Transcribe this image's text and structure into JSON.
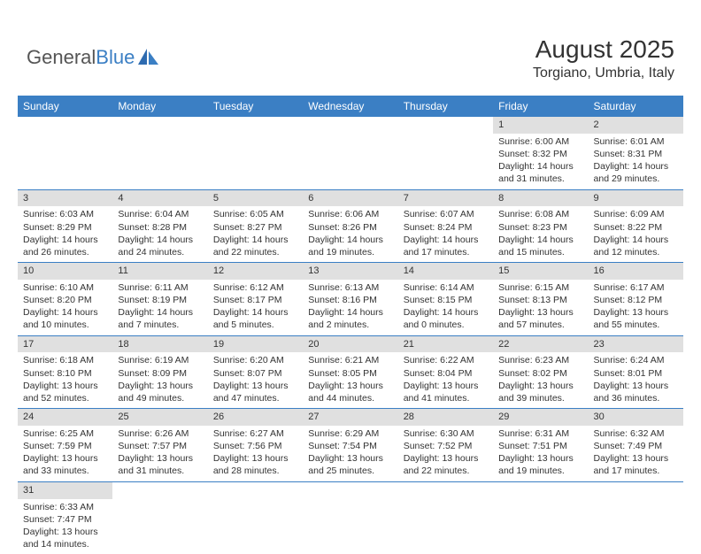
{
  "brand": {
    "part1": "General",
    "part2": "Blue"
  },
  "title": {
    "month": "August 2025",
    "location": "Torgiano, Umbria, Italy"
  },
  "styling": {
    "header_bg": "#3b7fc4",
    "header_text": "#ffffff",
    "daynum_bg": "#e0e0e0",
    "week_border": "#3b7fc4",
    "body_text": "#333333",
    "font_family": "Arial",
    "title_fontsize": 28,
    "location_fontsize": 16,
    "dayheader_fontsize": 12,
    "cell_fontsize": 10.5
  },
  "calendar": {
    "type": "table",
    "columns": [
      "Sunday",
      "Monday",
      "Tuesday",
      "Wednesday",
      "Thursday",
      "Friday",
      "Saturday"
    ],
    "weeks": [
      [
        null,
        null,
        null,
        null,
        null,
        {
          "day": "1",
          "sunrise": "Sunrise: 6:00 AM",
          "sunset": "Sunset: 8:32 PM",
          "daylight": "Daylight: 14 hours and 31 minutes."
        },
        {
          "day": "2",
          "sunrise": "Sunrise: 6:01 AM",
          "sunset": "Sunset: 8:31 PM",
          "daylight": "Daylight: 14 hours and 29 minutes."
        }
      ],
      [
        {
          "day": "3",
          "sunrise": "Sunrise: 6:03 AM",
          "sunset": "Sunset: 8:29 PM",
          "daylight": "Daylight: 14 hours and 26 minutes."
        },
        {
          "day": "4",
          "sunrise": "Sunrise: 6:04 AM",
          "sunset": "Sunset: 8:28 PM",
          "daylight": "Daylight: 14 hours and 24 minutes."
        },
        {
          "day": "5",
          "sunrise": "Sunrise: 6:05 AM",
          "sunset": "Sunset: 8:27 PM",
          "daylight": "Daylight: 14 hours and 22 minutes."
        },
        {
          "day": "6",
          "sunrise": "Sunrise: 6:06 AM",
          "sunset": "Sunset: 8:26 PM",
          "daylight": "Daylight: 14 hours and 19 minutes."
        },
        {
          "day": "7",
          "sunrise": "Sunrise: 6:07 AM",
          "sunset": "Sunset: 8:24 PM",
          "daylight": "Daylight: 14 hours and 17 minutes."
        },
        {
          "day": "8",
          "sunrise": "Sunrise: 6:08 AM",
          "sunset": "Sunset: 8:23 PM",
          "daylight": "Daylight: 14 hours and 15 minutes."
        },
        {
          "day": "9",
          "sunrise": "Sunrise: 6:09 AM",
          "sunset": "Sunset: 8:22 PM",
          "daylight": "Daylight: 14 hours and 12 minutes."
        }
      ],
      [
        {
          "day": "10",
          "sunrise": "Sunrise: 6:10 AM",
          "sunset": "Sunset: 8:20 PM",
          "daylight": "Daylight: 14 hours and 10 minutes."
        },
        {
          "day": "11",
          "sunrise": "Sunrise: 6:11 AM",
          "sunset": "Sunset: 8:19 PM",
          "daylight": "Daylight: 14 hours and 7 minutes."
        },
        {
          "day": "12",
          "sunrise": "Sunrise: 6:12 AM",
          "sunset": "Sunset: 8:17 PM",
          "daylight": "Daylight: 14 hours and 5 minutes."
        },
        {
          "day": "13",
          "sunrise": "Sunrise: 6:13 AM",
          "sunset": "Sunset: 8:16 PM",
          "daylight": "Daylight: 14 hours and 2 minutes."
        },
        {
          "day": "14",
          "sunrise": "Sunrise: 6:14 AM",
          "sunset": "Sunset: 8:15 PM",
          "daylight": "Daylight: 14 hours and 0 minutes."
        },
        {
          "day": "15",
          "sunrise": "Sunrise: 6:15 AM",
          "sunset": "Sunset: 8:13 PM",
          "daylight": "Daylight: 13 hours and 57 minutes."
        },
        {
          "day": "16",
          "sunrise": "Sunrise: 6:17 AM",
          "sunset": "Sunset: 8:12 PM",
          "daylight": "Daylight: 13 hours and 55 minutes."
        }
      ],
      [
        {
          "day": "17",
          "sunrise": "Sunrise: 6:18 AM",
          "sunset": "Sunset: 8:10 PM",
          "daylight": "Daylight: 13 hours and 52 minutes."
        },
        {
          "day": "18",
          "sunrise": "Sunrise: 6:19 AM",
          "sunset": "Sunset: 8:09 PM",
          "daylight": "Daylight: 13 hours and 49 minutes."
        },
        {
          "day": "19",
          "sunrise": "Sunrise: 6:20 AM",
          "sunset": "Sunset: 8:07 PM",
          "daylight": "Daylight: 13 hours and 47 minutes."
        },
        {
          "day": "20",
          "sunrise": "Sunrise: 6:21 AM",
          "sunset": "Sunset: 8:05 PM",
          "daylight": "Daylight: 13 hours and 44 minutes."
        },
        {
          "day": "21",
          "sunrise": "Sunrise: 6:22 AM",
          "sunset": "Sunset: 8:04 PM",
          "daylight": "Daylight: 13 hours and 41 minutes."
        },
        {
          "day": "22",
          "sunrise": "Sunrise: 6:23 AM",
          "sunset": "Sunset: 8:02 PM",
          "daylight": "Daylight: 13 hours and 39 minutes."
        },
        {
          "day": "23",
          "sunrise": "Sunrise: 6:24 AM",
          "sunset": "Sunset: 8:01 PM",
          "daylight": "Daylight: 13 hours and 36 minutes."
        }
      ],
      [
        {
          "day": "24",
          "sunrise": "Sunrise: 6:25 AM",
          "sunset": "Sunset: 7:59 PM",
          "daylight": "Daylight: 13 hours and 33 minutes."
        },
        {
          "day": "25",
          "sunrise": "Sunrise: 6:26 AM",
          "sunset": "Sunset: 7:57 PM",
          "daylight": "Daylight: 13 hours and 31 minutes."
        },
        {
          "day": "26",
          "sunrise": "Sunrise: 6:27 AM",
          "sunset": "Sunset: 7:56 PM",
          "daylight": "Daylight: 13 hours and 28 minutes."
        },
        {
          "day": "27",
          "sunrise": "Sunrise: 6:29 AM",
          "sunset": "Sunset: 7:54 PM",
          "daylight": "Daylight: 13 hours and 25 minutes."
        },
        {
          "day": "28",
          "sunrise": "Sunrise: 6:30 AM",
          "sunset": "Sunset: 7:52 PM",
          "daylight": "Daylight: 13 hours and 22 minutes."
        },
        {
          "day": "29",
          "sunrise": "Sunrise: 6:31 AM",
          "sunset": "Sunset: 7:51 PM",
          "daylight": "Daylight: 13 hours and 19 minutes."
        },
        {
          "day": "30",
          "sunrise": "Sunrise: 6:32 AM",
          "sunset": "Sunset: 7:49 PM",
          "daylight": "Daylight: 13 hours and 17 minutes."
        }
      ],
      [
        {
          "day": "31",
          "sunrise": "Sunrise: 6:33 AM",
          "sunset": "Sunset: 7:47 PM",
          "daylight": "Daylight: 13 hours and 14 minutes."
        },
        null,
        null,
        null,
        null,
        null,
        null
      ]
    ]
  }
}
